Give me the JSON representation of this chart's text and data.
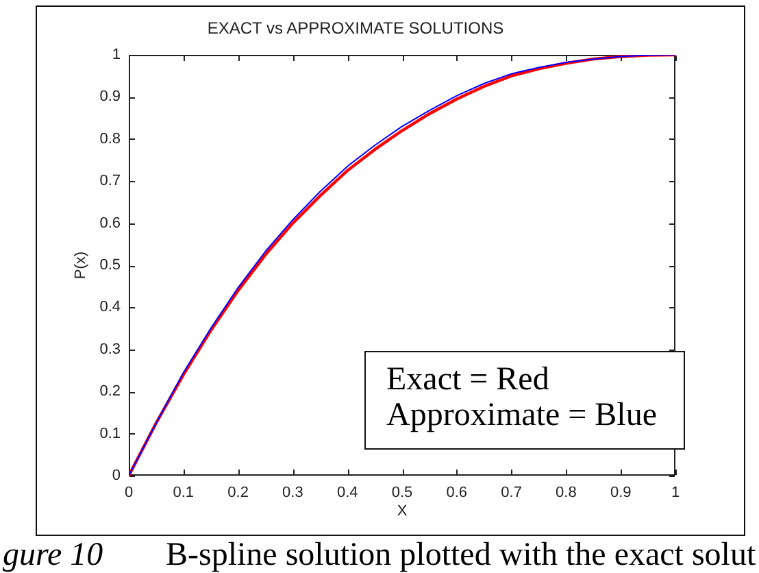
{
  "chart_data": {
    "type": "line",
    "title": "EXACT vs APPROXIMATE SOLUTIONS",
    "xlabel": "X",
    "ylabel": "P(x)",
    "x": [
      0,
      0.05,
      0.1,
      0.15,
      0.2,
      0.25,
      0.3,
      0.35,
      0.4,
      0.45,
      0.5,
      0.55,
      0.6,
      0.65,
      0.7,
      0.75,
      0.8,
      0.85,
      0.9,
      0.95,
      1
    ],
    "series": [
      {
        "color": "#ff0000",
        "values": [
          0,
          0.125,
          0.24,
          0.345,
          0.44,
          0.525,
          0.6,
          0.665,
          0.725,
          0.775,
          0.82,
          0.86,
          0.895,
          0.925,
          0.95,
          0.967,
          0.98,
          0.99,
          0.996,
          0.999,
          1
        ]
      },
      {
        "color": "#0000ff",
        "values": [
          0,
          0.125,
          0.245,
          0.35,
          0.447,
          0.533,
          0.608,
          0.675,
          0.735,
          0.785,
          0.83,
          0.868,
          0.903,
          0.932,
          0.955,
          0.97,
          0.982,
          0.99,
          0.996,
          0.999,
          1
        ]
      }
    ],
    "xlim": [
      0,
      1
    ],
    "ylim": [
      0,
      1
    ],
    "xticks": [
      0,
      0.1,
      0.2,
      0.3,
      0.4,
      0.5,
      0.6,
      0.7,
      0.8,
      0.9,
      1
    ],
    "yticks": [
      0,
      0.1,
      0.2,
      0.3,
      0.4,
      0.5,
      0.6,
      0.7,
      0.8,
      0.9,
      1
    ],
    "marker": "none",
    "annotations": [
      "Exact = Red",
      "Approximate = Blue",
      "gure 10",
      "B-spline solution plotted with the exact solut"
    ]
  }
}
